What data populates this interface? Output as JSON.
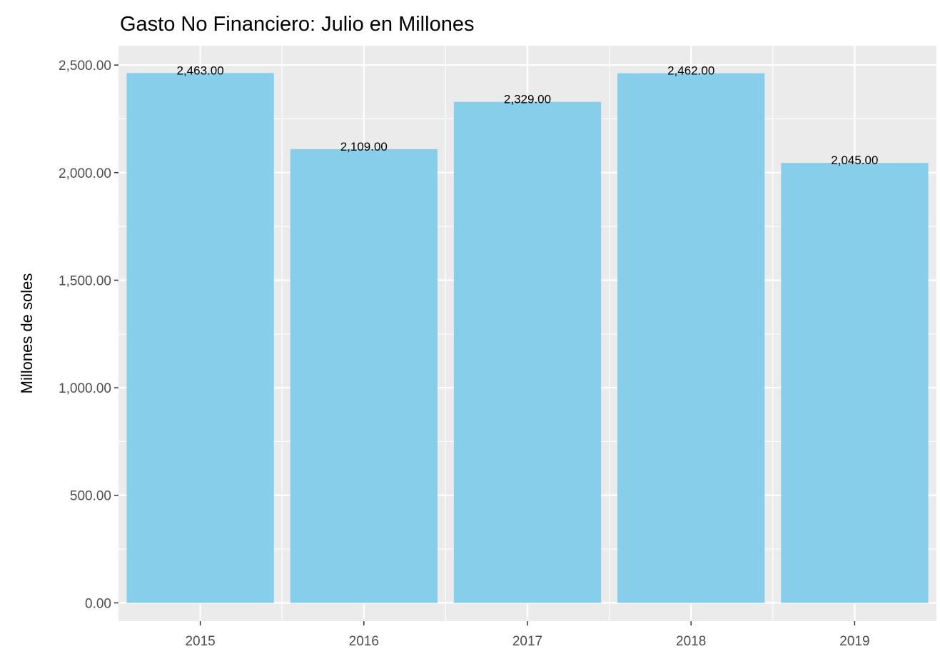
{
  "chart_data": {
    "type": "bar",
    "title": "Gasto No Financiero: Julio  en Millones",
    "xlabel": "",
    "ylabel": "Millones de soles",
    "categories": [
      "2015",
      "2016",
      "2017",
      "2018",
      "2019"
    ],
    "values": [
      2463,
      2109,
      2329,
      2462,
      2045
    ],
    "data_labels": [
      "2,463.00",
      "2,109.00",
      "2,329.00",
      "2,462.00",
      "2,045.00"
    ],
    "yticks": [
      0,
      500,
      1000,
      1500,
      2000,
      2500
    ],
    "ytick_labels": [
      "0.00",
      "500.00",
      "1,000.00",
      "1,500.00",
      "2,000.00",
      "2,500.00"
    ],
    "ylim": [
      -85,
      2590
    ],
    "grid": true,
    "legend": "none",
    "colors": {
      "bar": "#87ceeb",
      "panel_background": "#ebebeb",
      "grid": "#ffffff",
      "tick_text": "#4d4d4d",
      "axis_tick": "#333333"
    }
  }
}
